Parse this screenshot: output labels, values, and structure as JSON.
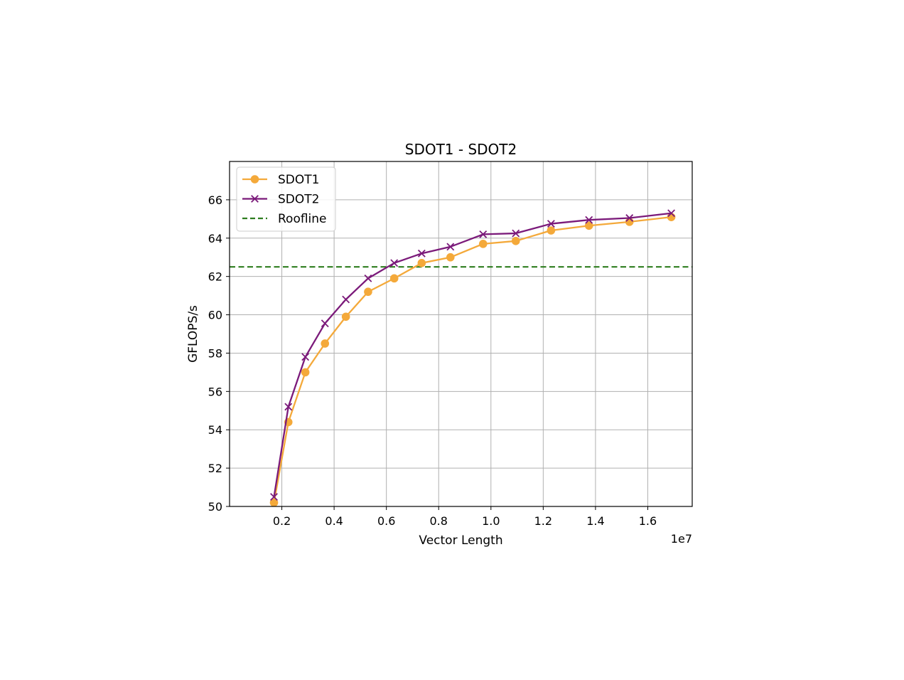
{
  "chart_data": {
    "type": "line",
    "title": "SDOT1 - SDOT2",
    "xlabel": "Vector Length",
    "ylabel": "GFLOPS/s",
    "x_offset_text": "1e7",
    "x_scale": 10000000,
    "xlim": [
      0.0,
      1.77
    ],
    "ylim": [
      50,
      68
    ],
    "xticks": [
      0.2,
      0.4,
      0.6,
      0.8,
      1.0,
      1.2,
      1.4,
      1.6
    ],
    "xtick_labels": [
      "0.2",
      "0.4",
      "0.6",
      "0.8",
      "1.0",
      "1.2",
      "1.4",
      "1.6"
    ],
    "yticks": [
      50,
      52,
      54,
      56,
      58,
      60,
      62,
      64,
      66
    ],
    "ytick_labels": [
      "50",
      "52",
      "54",
      "56",
      "58",
      "60",
      "62",
      "64",
      "66"
    ],
    "grid": true,
    "legend_position": "upper-left",
    "x": [
      0.17,
      0.225,
      0.29,
      0.365,
      0.445,
      0.53,
      0.63,
      0.735,
      0.845,
      0.97,
      1.095,
      1.23,
      1.375,
      1.53,
      1.69
    ],
    "series": [
      {
        "name": "SDOT1",
        "marker": "circle",
        "color": "#f4a93a",
        "values": [
          50.2,
          54.4,
          57.0,
          58.5,
          59.9,
          61.2,
          61.9,
          62.7,
          63.0,
          63.7,
          63.85,
          64.4,
          64.65,
          64.85,
          65.1
        ]
      },
      {
        "name": "SDOT2",
        "marker": "x",
        "color": "#7b1a7a",
        "values": [
          50.5,
          55.2,
          57.8,
          59.55,
          60.8,
          61.9,
          62.7,
          63.2,
          63.55,
          64.2,
          64.25,
          64.75,
          64.95,
          65.05,
          65.3
        ]
      }
    ],
    "reference_lines": [
      {
        "name": "Roofline",
        "y": 62.5,
        "color": "#2e7d1f",
        "style": "dashed"
      }
    ]
  },
  "colors": {
    "grid": "#b0b0b0",
    "axes": "#000000"
  }
}
